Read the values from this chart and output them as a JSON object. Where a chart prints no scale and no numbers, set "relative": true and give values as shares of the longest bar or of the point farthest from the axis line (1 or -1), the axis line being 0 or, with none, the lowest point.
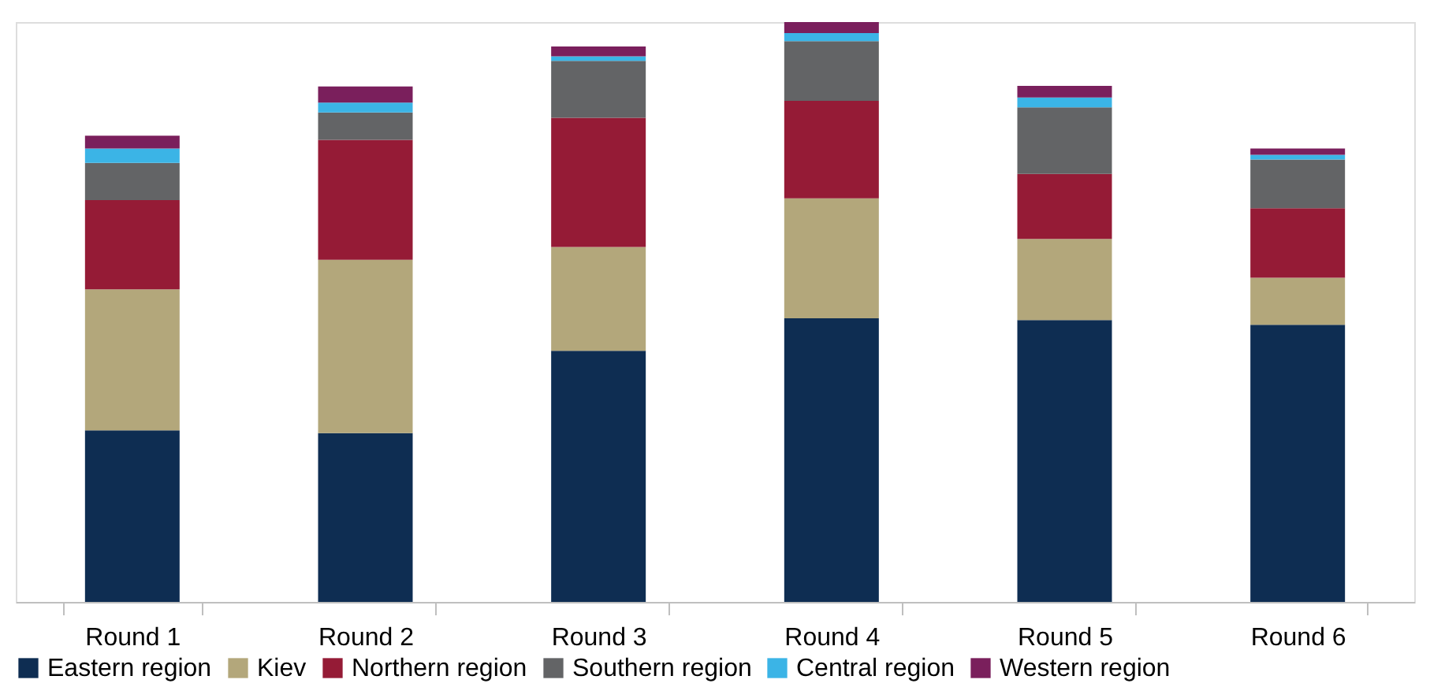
{
  "chart_data": {
    "type": "bar",
    "stacked": true,
    "relative": true,
    "legend": "bottom",
    "grid": false,
    "categories": [
      "Round 1",
      "Round 2",
      "Round 3",
      "Round 4",
      "Round 5",
      "Round 6"
    ],
    "series": [
      {
        "name": "Eastern region",
        "color": "#0e2d52",
        "values": [
          0.296,
          0.291,
          0.433,
          0.489,
          0.486,
          0.478
        ]
      },
      {
        "name": "Kiev",
        "color": "#b3a77b",
        "values": [
          0.243,
          0.299,
          0.179,
          0.207,
          0.14,
          0.081
        ]
      },
      {
        "name": "Northern region",
        "color": "#951b36",
        "values": [
          0.154,
          0.207,
          0.223,
          0.168,
          0.112,
          0.12
        ]
      },
      {
        "name": "Southern region",
        "color": "#636466",
        "values": [
          0.064,
          0.047,
          0.098,
          0.103,
          0.115,
          0.084
        ]
      },
      {
        "name": "Central region",
        "color": "#3bb4e6",
        "values": [
          0.025,
          0.017,
          0.008,
          0.014,
          0.017,
          0.008
        ]
      },
      {
        "name": "Western region",
        "color": "#7a1f5c",
        "values": [
          0.022,
          0.028,
          0.017,
          0.019,
          0.02,
          0.011
        ]
      }
    ]
  }
}
